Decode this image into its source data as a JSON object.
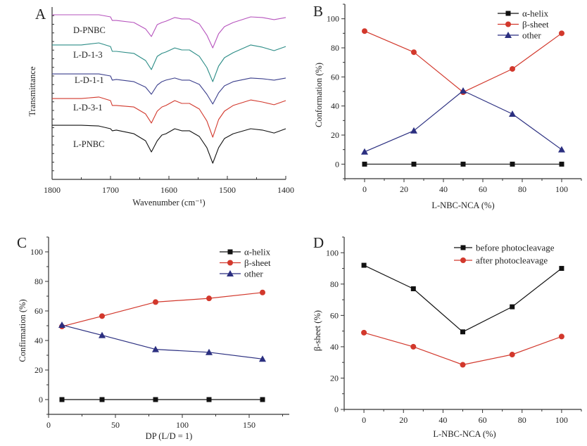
{
  "chart_data": [
    {
      "panel": "A",
      "type": "line",
      "title": "",
      "xlabel": "Wavenumber (cm⁻¹)",
      "ylabel": "Transmittance",
      "xlim": [
        1800,
        1400
      ],
      "ylim": [
        0,
        100
      ],
      "xticks": [
        1800,
        1700,
        1600,
        1500,
        1400
      ],
      "yticks": [],
      "grid": false,
      "legend": "none",
      "x": [
        1800,
        1750,
        1720,
        1700,
        1697,
        1690,
        1660,
        1640,
        1630,
        1620,
        1612,
        1605,
        1590,
        1578,
        1565,
        1548,
        1535,
        1525,
        1515,
        1505,
        1490,
        1460,
        1440,
        1420,
        1400
      ],
      "series": [
        {
          "name": "D-PNBC",
          "color": "#b653bd",
          "marker": "none",
          "values": [
            95.5,
            95.5,
            95.5,
            94.3,
            92.2,
            92.2,
            91.0,
            87.3,
            82.9,
            89.8,
            91.0,
            91.8,
            93.9,
            93.1,
            93.1,
            90.2,
            83.7,
            76.3,
            84.5,
            88.6,
            91.0,
            94.3,
            93.9,
            92.7,
            93.9
          ]
        },
        {
          "name": "L-D-1-3",
          "color": "#2b8c86",
          "marker": "none",
          "values": [
            78.0,
            78.0,
            79.2,
            77.1,
            74.3,
            74.3,
            73.1,
            69.0,
            63.7,
            71.4,
            73.1,
            73.9,
            76.3,
            75.1,
            75.1,
            71.4,
            64.9,
            56.7,
            65.7,
            70.6,
            73.5,
            78.0,
            76.7,
            74.7,
            77.1
          ]
        },
        {
          "name": "L-D-1-1",
          "color": "#3b3f8c",
          "marker": "none",
          "values": [
            61.2,
            61.2,
            61.2,
            60.0,
            57.6,
            58.0,
            56.7,
            53.5,
            49.4,
            54.7,
            56.7,
            57.6,
            58.8,
            57.6,
            57.6,
            55.1,
            49.4,
            43.7,
            50.2,
            54.3,
            56.7,
            58.8,
            58.4,
            57.6,
            58.8
          ]
        },
        {
          "name": "L-D-3-1",
          "color": "#d2382c",
          "marker": "none",
          "values": [
            46.9,
            46.9,
            47.8,
            45.7,
            42.9,
            42.9,
            42.0,
            38.0,
            32.7,
            39.6,
            42.0,
            42.9,
            45.7,
            44.1,
            44.1,
            40.8,
            33.9,
            24.5,
            34.7,
            39.6,
            42.9,
            46.1,
            44.9,
            43.3,
            45.7
          ]
        },
        {
          "name": "L-PNBC",
          "color": "#111111",
          "marker": "none",
          "values": [
            31.4,
            31.4,
            31.0,
            29.4,
            28.2,
            28.6,
            26.5,
            22.4,
            15.9,
            22.4,
            25.7,
            26.5,
            29.4,
            28.2,
            28.2,
            24.9,
            18.4,
            9.4,
            18.4,
            23.7,
            26.5,
            29.4,
            28.6,
            26.9,
            29.4
          ]
        }
      ]
    },
    {
      "panel": "B",
      "type": "line",
      "title": "",
      "xlabel": "L-NBC-NCA (%)",
      "ylabel": "Conformation (%)",
      "xlim": [
        -10,
        110
      ],
      "ylim": [
        -10,
        110
      ],
      "xticks": [
        0,
        20,
        40,
        60,
        80,
        100
      ],
      "yticks": [
        0,
        20,
        40,
        60,
        80,
        100
      ],
      "grid": false,
      "legend": "top-right",
      "x": [
        0,
        25,
        50,
        75,
        100
      ],
      "series": [
        {
          "name": "α-helix",
          "color": "#111111",
          "marker": "square",
          "values": [
            0,
            0,
            0,
            0,
            0
          ]
        },
        {
          "name": "β-sheet",
          "color": "#d2382c",
          "marker": "circle",
          "values": [
            91.5,
            77,
            49.5,
            65.5,
            90
          ]
        },
        {
          "name": "other",
          "color": "#2b2f80",
          "marker": "triangle",
          "values": [
            8.5,
            23,
            50.5,
            34.5,
            10
          ]
        }
      ]
    },
    {
      "panel": "C",
      "type": "line",
      "title": "",
      "xlabel": "DP (L/D = 1)",
      "ylabel": "Confirmation (%)",
      "xlim": [
        0,
        180
      ],
      "ylim": [
        -10,
        110
      ],
      "xticks": [
        0,
        50,
        100,
        150
      ],
      "yticks": [
        0,
        20,
        40,
        60,
        80,
        100
      ],
      "grid": false,
      "legend": "top-right",
      "x": [
        10,
        40,
        80,
        120,
        160
      ],
      "series": [
        {
          "name": "α-helix",
          "color": "#111111",
          "marker": "square",
          "values": [
            0,
            0,
            0,
            0,
            0
          ]
        },
        {
          "name": "β-sheet",
          "color": "#d2382c",
          "marker": "circle",
          "values": [
            49.5,
            56.5,
            66,
            68.5,
            72.5
          ]
        },
        {
          "name": "other",
          "color": "#2b2f80",
          "marker": "triangle",
          "values": [
            50.5,
            43.5,
            34,
            32,
            27.5
          ]
        }
      ]
    },
    {
      "panel": "D",
      "type": "line",
      "title": "",
      "xlabel": "L-NBC-NCA (%)",
      "ylabel": "β-sheet (%)",
      "xlim": [
        -10,
        110
      ],
      "ylim": [
        0,
        110
      ],
      "xticks": [
        0,
        20,
        40,
        60,
        80,
        100
      ],
      "yticks": [
        0,
        20,
        40,
        60,
        80,
        100
      ],
      "grid": false,
      "legend": "top-right",
      "x": [
        0,
        25,
        50,
        75,
        100
      ],
      "series": [
        {
          "name": "before  photocleavage",
          "color": "#111111",
          "marker": "square",
          "values": [
            92,
            77,
            49.5,
            65.5,
            90
          ]
        },
        {
          "name": "after  photocleavage",
          "color": "#d2382c",
          "marker": "circle",
          "values": [
            49,
            40,
            28.5,
            35,
            46.5
          ]
        }
      ]
    }
  ]
}
